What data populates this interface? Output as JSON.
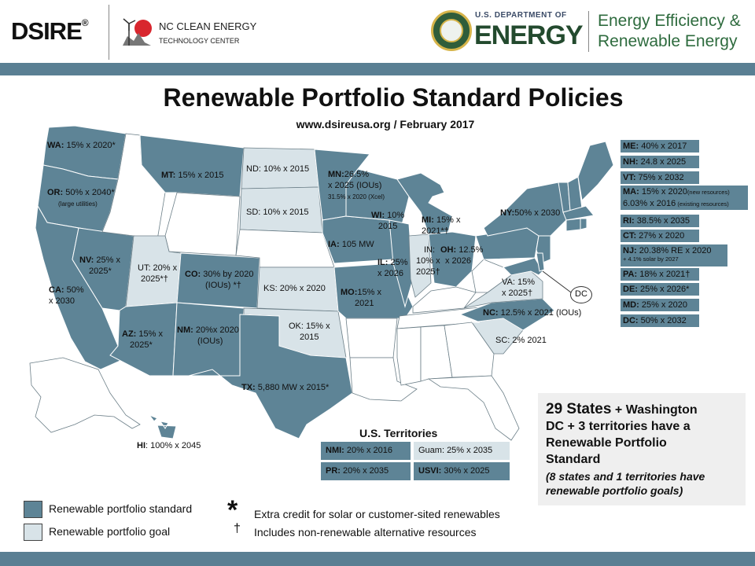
{
  "header": {
    "dsire_logo": "DSIRE",
    "dsire_mark": "®",
    "nc_title": "NC CLEAN ENERGY",
    "nc_subtitle": "TECHNOLOGY CENTER",
    "doe_small": "U.S. DEPARTMENT OF",
    "doe_big": "ENERGY",
    "eere_line1": "Energy Efficiency &",
    "eere_line2": "Renewable Energy"
  },
  "title": "Renewable Portfolio Standard Policies",
  "subtitle": "www.dsireusa.org  / February  2017",
  "colors": {
    "standard": "#5e8496",
    "goal": "#d8e3e8",
    "band": "#5a7f93"
  },
  "map_labels": {
    "wa": {
      "abbr": "WA:",
      "text": " 15% x 2020*"
    },
    "or": {
      "abbr": "OR:",
      "text": " 50% x 2040*",
      "note": "(large utilities)"
    },
    "ca": {
      "abbr": "CA:",
      "text": "  50%",
      "line2": "x 2030"
    },
    "nv": {
      "abbr": "NV:",
      "text": "  25% x",
      "line2": "2025*"
    },
    "mt": {
      "abbr": "MT:",
      "text": "  15% x 2015"
    },
    "nd": {
      "text": "ND: 10% x  2015"
    },
    "sd": {
      "text": "SD: 10% x 2015"
    },
    "mn": {
      "abbr": "MN:",
      "text": "26.5%",
      "line2": "x 2025 (IOUs)",
      "note": "31.5% x 2020 (Xcel)"
    },
    "wi": {
      "abbr": "WI:",
      "text": "  10%",
      "line2": "2015"
    },
    "mi": {
      "abbr": "MI:",
      "text": "  15% x",
      "line2": "2021*†"
    },
    "ia": {
      "abbr": "IA:",
      "text": "  105 MW"
    },
    "il": {
      "abbr": "IL:",
      "text": "  25%",
      "line2": "x 2026"
    },
    "in": {
      "text": "IN:",
      "line2": "10% x",
      "line3": "2025†"
    },
    "oh": {
      "abbr": "OH:",
      "text": "  12.5%",
      "line2": "x 2026"
    },
    "ny": {
      "abbr": "NY:",
      "text": "50%  x 2030"
    },
    "ut": {
      "text": "UT: 20% x",
      "line2": "2025*†"
    },
    "co": {
      "abbr": "CO:",
      "text": " 30% by 2020",
      "line2": "(IOUs) *†"
    },
    "ks": {
      "text": "KS: 20% x 2020"
    },
    "mo": {
      "abbr": "MO:",
      "text": "15% x",
      "line2": "2021"
    },
    "va": {
      "text": "VA:  15%",
      "line2": "x 2025†"
    },
    "nc": {
      "abbr": "NC:",
      "text": "  12.5% x 2021 (IOUs)"
    },
    "sc": {
      "text": "SC: 2% 2021"
    },
    "az": {
      "abbr": "AZ:",
      "text": "  15% x",
      "line2": "2025*"
    },
    "nm": {
      "abbr": "NM:",
      "text": "  20%x 2020",
      "line2": "(IOUs)"
    },
    "ok": {
      "text": "OK: 15% x",
      "line2": "2015"
    },
    "tx": {
      "abbr": "TX:",
      "text": " 5,880 MW x 2015*"
    },
    "hi": {
      "abbr": "HI",
      "text": ":  100% x 2045"
    },
    "dc": "DC"
  },
  "right_column": [
    {
      "abbr": "ME:",
      "text": "  40% x 2017"
    },
    {
      "abbr": "NH:",
      "text": "  24.8 x 2025"
    },
    {
      "abbr": "VT:",
      "text": "  75% x 2032"
    },
    {
      "abbr": "MA:",
      "text": "  15% x 2020",
      "note": "(new resources)",
      "line2": "6.03% x 2016",
      "note2": " (existing resources)"
    },
    {
      "abbr": "RI:",
      "text": "  38.5% x 2035"
    },
    {
      "abbr": "CT:",
      "text": " 27% x 2020"
    },
    {
      "abbr": "NJ:",
      "text": " 20.38% RE x 2020",
      "line2_note": "+ 4.1% solar by 2027"
    },
    {
      "abbr": "PA:",
      "text": "  18% x 2021†"
    },
    {
      "abbr": "DE:",
      "text": "  25% x 2026*"
    },
    {
      "abbr": "MD:",
      "text": "  25% x 2020"
    },
    {
      "abbr": "DC:",
      "text": "  50% x 2032"
    }
  ],
  "territories": {
    "title": "U.S. Territories",
    "nmi": {
      "abbr": "NMI:",
      "text": " 20% x 2016"
    },
    "guam": {
      "text": "Guam: 25% x 2035"
    },
    "pr": {
      "abbr": "PR:",
      "text": " 20% x 2035"
    },
    "usvi": {
      "abbr": "USVI:",
      "text": " 30% x 2025"
    }
  },
  "summary": {
    "count": "29 States",
    "rest1": " + Washington",
    "line2": "DC + 3 territories have a",
    "line3": "Renewable Portfolio",
    "line4": "Standard",
    "goals": "(8 states and 1 territories have renewable portfolio goals)"
  },
  "legend": {
    "standard_label": "Renewable portfolio standard",
    "goal_label": "Renewable portfolio goal",
    "star_symbol": "*",
    "star_text": "Extra credit for solar or customer-sited renewables",
    "dagger_symbol": "†",
    "dagger_text": "Includes non-renewable alternative resources"
  }
}
